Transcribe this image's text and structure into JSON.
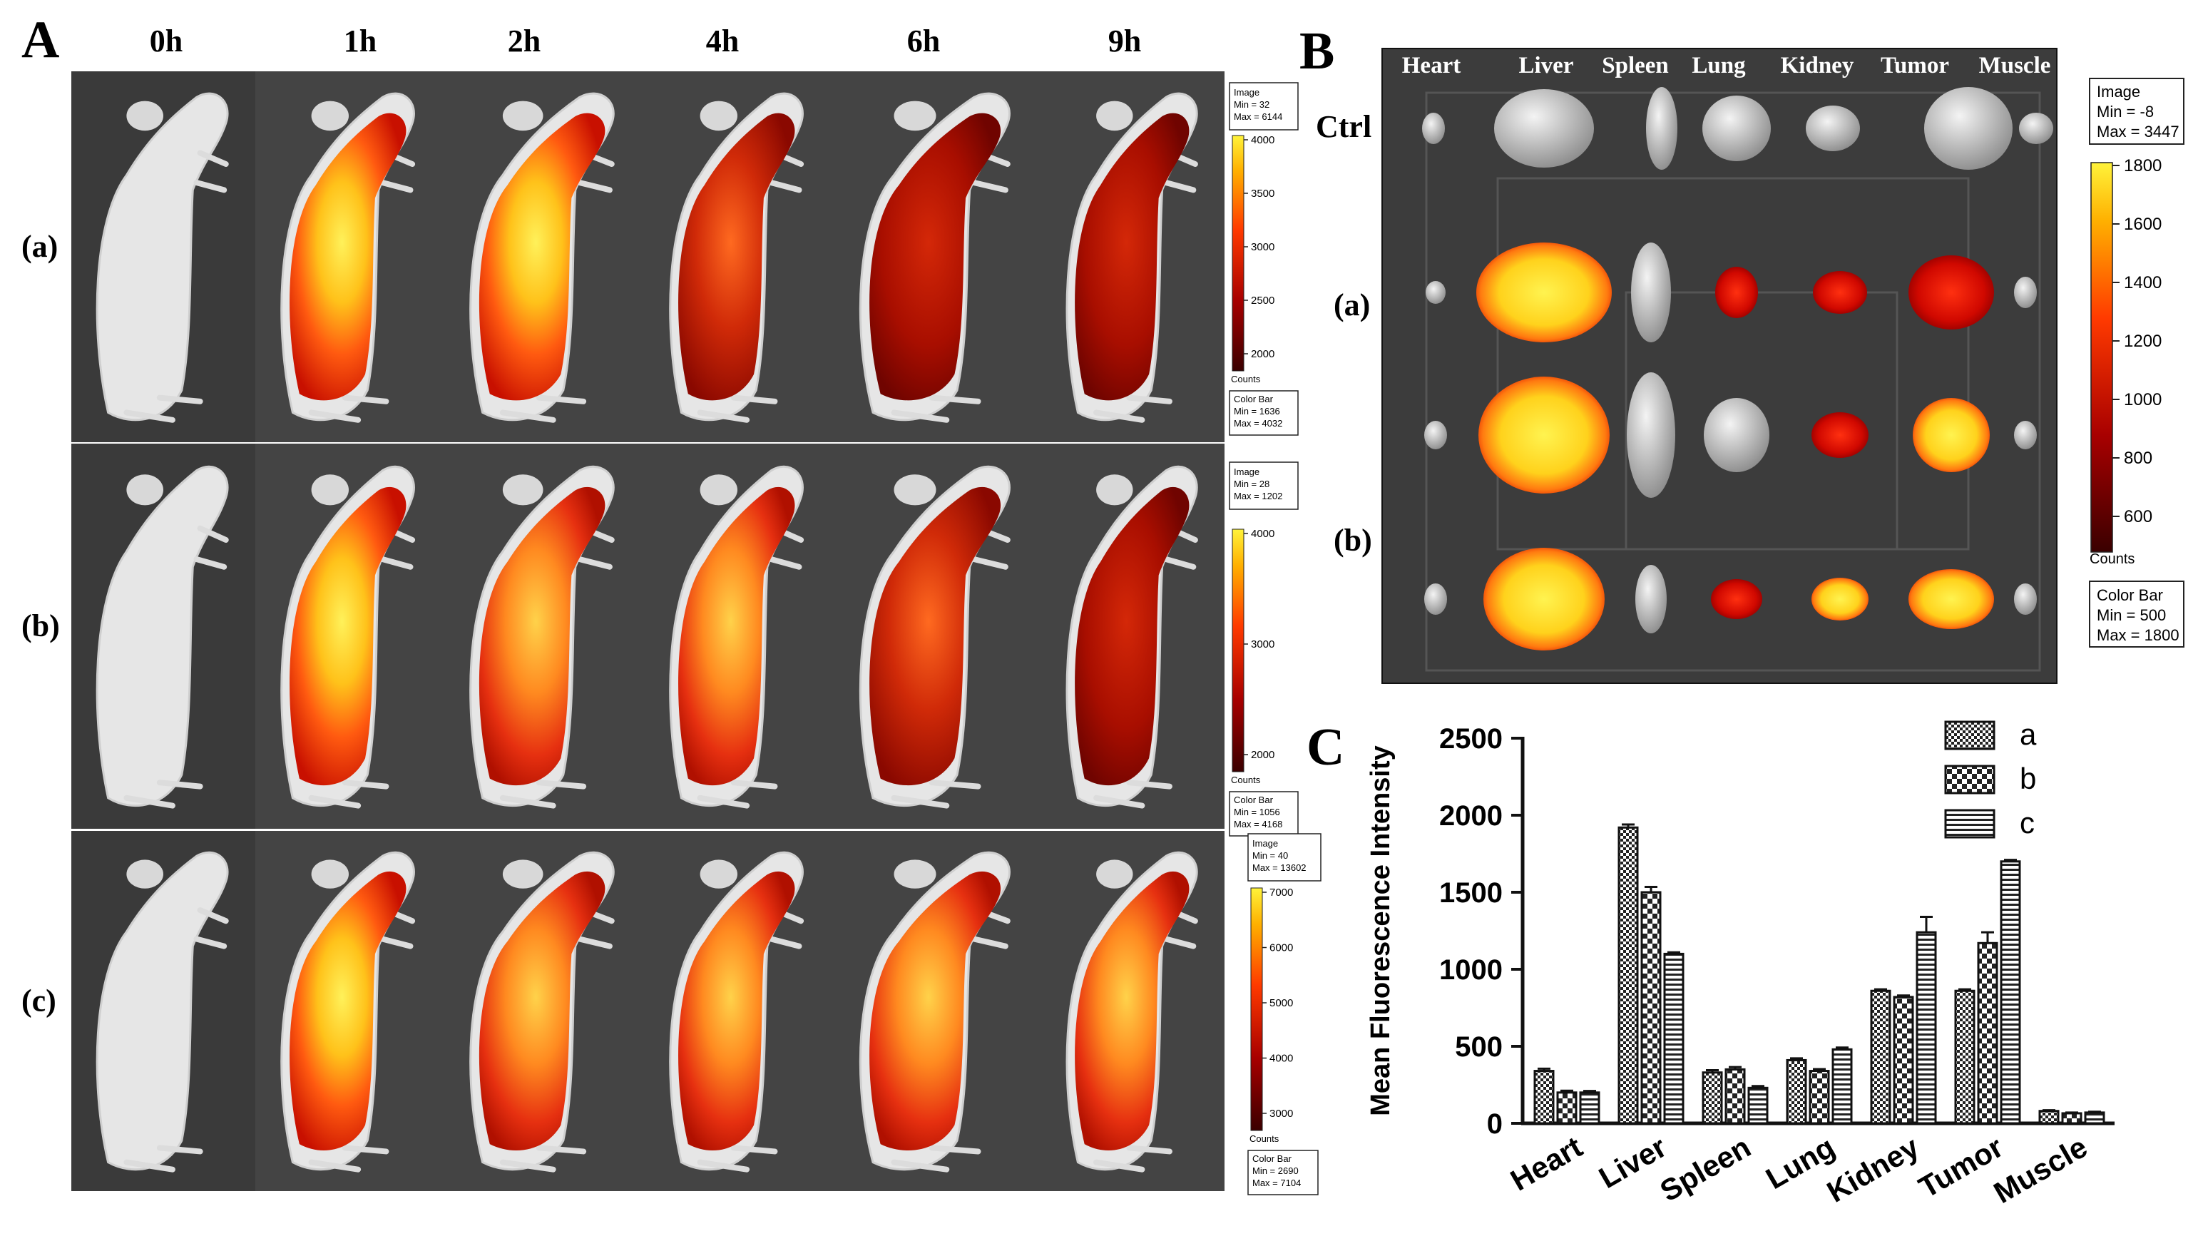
{
  "panel_a": {
    "letter": "A",
    "timepoints": [
      "0h",
      "1h",
      "2h",
      "4h",
      "6h",
      "9h"
    ],
    "rows": [
      {
        "label": "(a)",
        "image_min": "Image\nMin = 32\nMax = 6144",
        "ticks": [
          "4000",
          "3500",
          "3000",
          "2500",
          "2000"
        ],
        "counts": "Counts",
        "colorbar": "Color Bar\nMin = 1636\nMax = 4032"
      },
      {
        "label": "(b)",
        "image_min": "Image\nMin = 28\nMax = 1202",
        "ticks": [
          "4000",
          "3000",
          "2000"
        ],
        "counts": "Counts",
        "colorbar": "Color Bar\nMin = 1056\nMax = 4168"
      },
      {
        "label": "(c)",
        "image_min": "Image\nMin = 40\nMax = 13602",
        "ticks": [
          "7000",
          "6000",
          "5000",
          "4000",
          "3000"
        ],
        "counts": "Counts",
        "colorbar": "Color Bar\nMin = 2690\nMax = 7104"
      }
    ]
  },
  "panel_b": {
    "letter": "B",
    "organs": [
      "Heart",
      "Liver",
      "Spleen",
      "Lung",
      "Kidney",
      "Tumor",
      "Muscle"
    ],
    "rows": [
      "Ctrl",
      "(a)",
      "(b)"
    ],
    "image_box": "Image\nMin = -8\nMax = 3447",
    "ticks": [
      "1800",
      "1600",
      "1400",
      "1200",
      "1000",
      "800",
      "600"
    ],
    "counts": "Counts",
    "colorbar_box": "Color Bar\nMin = 500\nMax = 1800"
  },
  "panel_c": {
    "letter": "C"
  },
  "chart_data": {
    "type": "bar",
    "title": "",
    "ylabel": "Mean Fluorescence Intensity",
    "xlabel": "",
    "ylim": [
      0,
      2500
    ],
    "yticks": [
      0,
      500,
      1000,
      1500,
      2000,
      2500
    ],
    "categories": [
      "Heart",
      "Liver",
      "Spleen",
      "Lung",
      "Kidney",
      "Tumor",
      "Muscle"
    ],
    "series": [
      {
        "name": "a",
        "values": [
          340,
          1920,
          330,
          410,
          860,
          860,
          80
        ],
        "errors": [
          15,
          20,
          15,
          12,
          10,
          10,
          5
        ]
      },
      {
        "name": "b",
        "values": [
          200,
          1500,
          350,
          340,
          820,
          1170,
          65
        ],
        "errors": [
          12,
          35,
          15,
          12,
          10,
          70,
          5
        ]
      },
      {
        "name": "c",
        "values": [
          200,
          1100,
          230,
          480,
          1240,
          1700,
          70
        ],
        "errors": [
          10,
          10,
          12,
          12,
          100,
          10,
          5
        ]
      }
    ],
    "legend_position": "top-right"
  }
}
